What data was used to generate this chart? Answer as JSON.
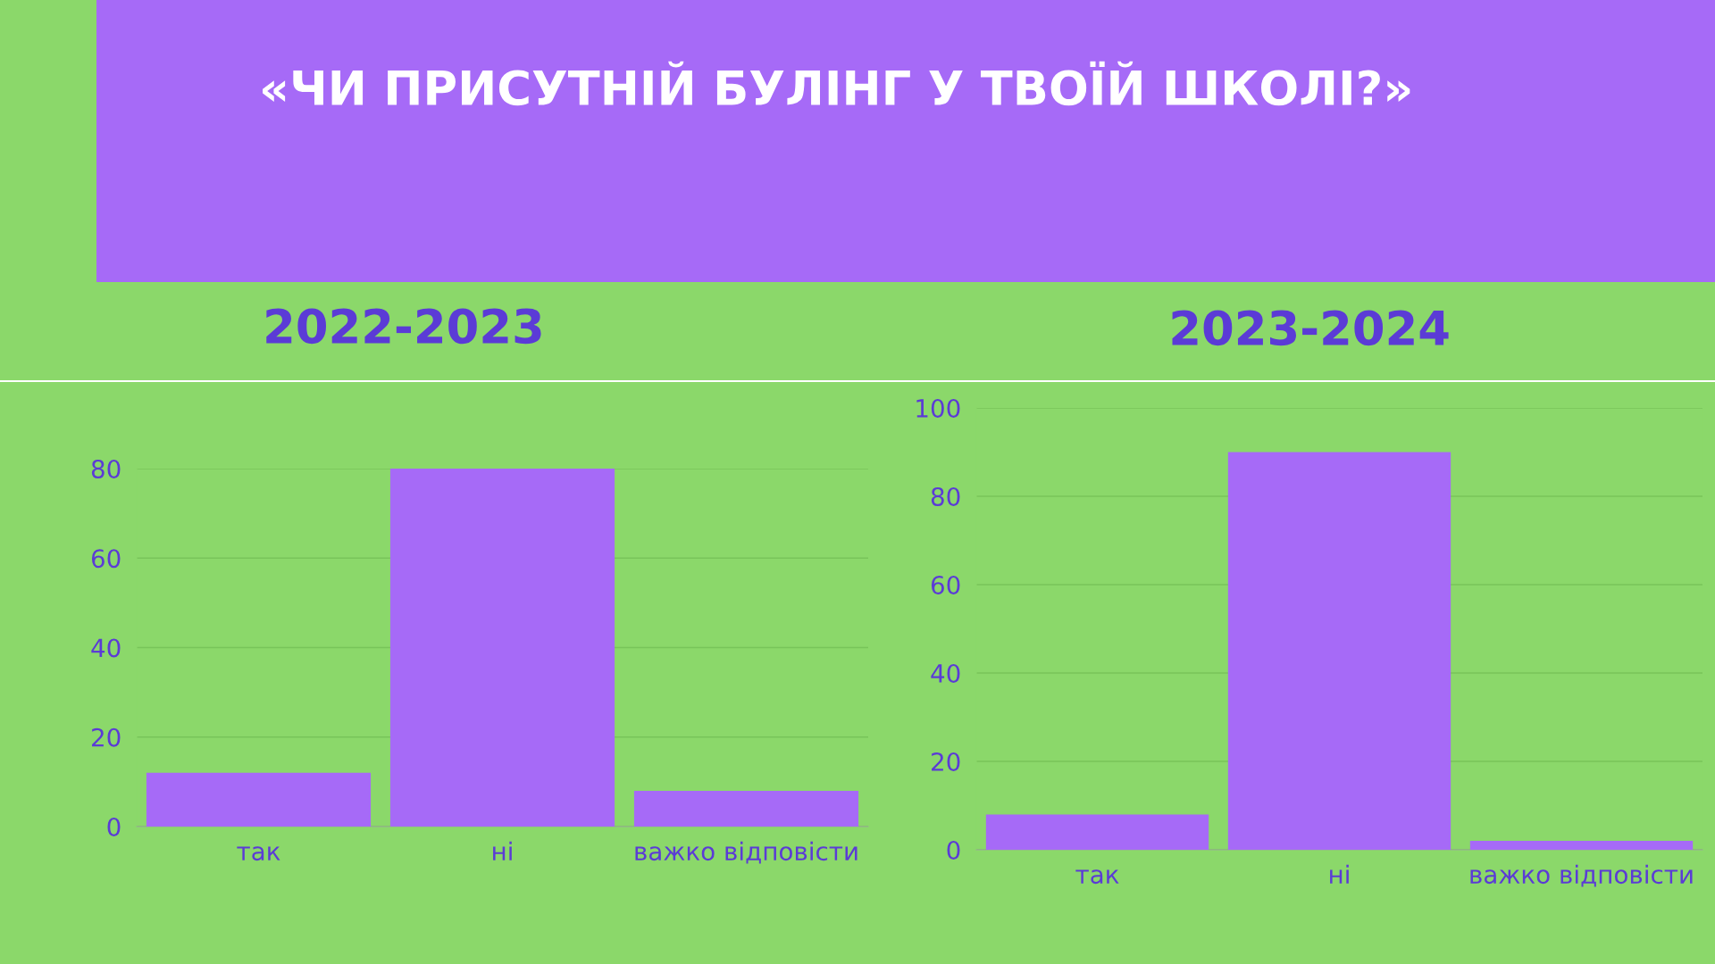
{
  "chart_data": [
    {
      "type": "other",
      "title": "«ЧИ ПРИСУТНІЙ БУЛІНГ У ТВОЇЙ ШКОЛІ?»"
    },
    {
      "type": "bar",
      "title": "2022-2023",
      "categories": [
        "так",
        "ні",
        "важко відповісти"
      ],
      "values": [
        12,
        80,
        8
      ],
      "color": "#a66af7",
      "ylim": [
        0,
        80
      ],
      "yticks": [
        0,
        20,
        40,
        60,
        80
      ],
      "grid": "y"
    },
    {
      "type": "bar",
      "title": "2023-2024",
      "categories": [
        "так",
        "ні",
        "важко відповісти"
      ],
      "values": [
        8,
        90,
        2
      ],
      "color": "#a66af7",
      "ylim": [
        0,
        100
      ],
      "yticks": [
        0,
        20,
        40,
        60,
        80,
        100
      ],
      "grid": "y"
    }
  ]
}
